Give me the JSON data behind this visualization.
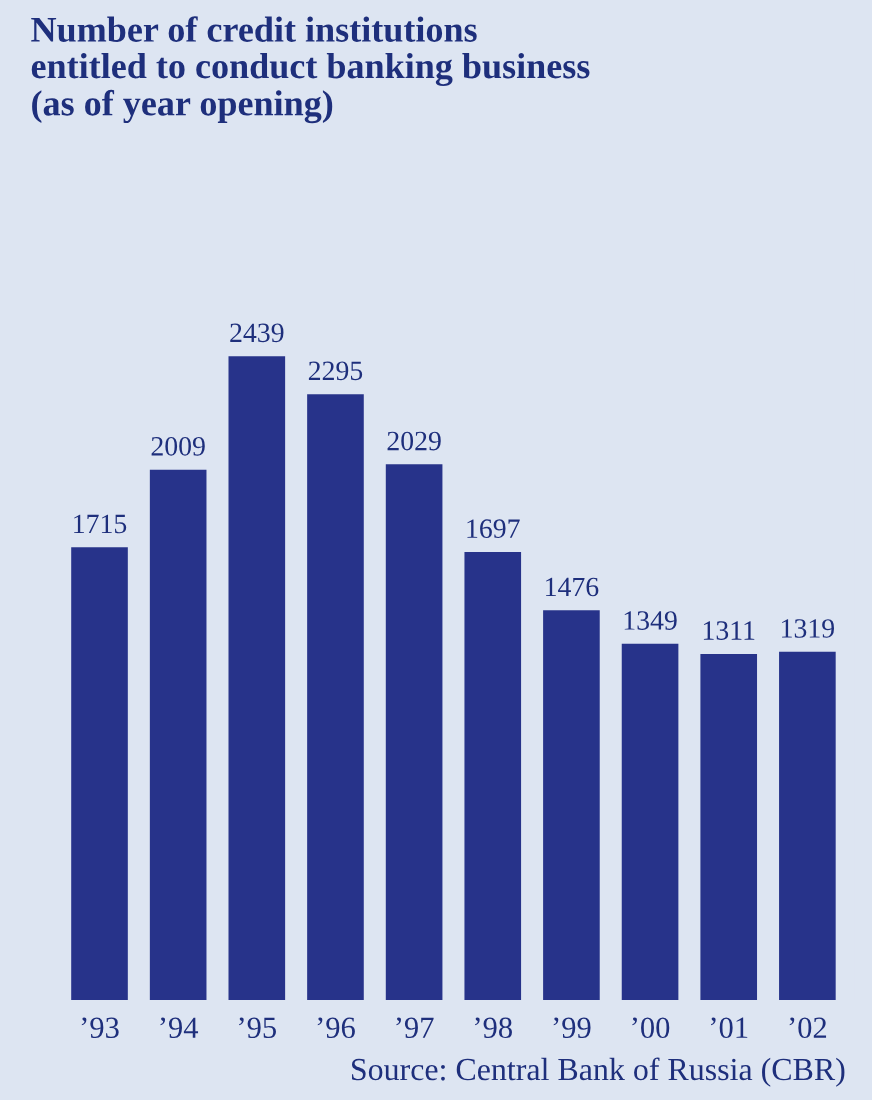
{
  "chart_data": {
    "type": "bar",
    "title": "Number of credit institutions\nentitled to conduct banking business\n(as of year opening)",
    "categories": [
      "’93",
      "’94",
      "’95",
      "’96",
      "’97",
      "’98",
      "’99",
      "’00",
      "’01",
      "’02"
    ],
    "values": [
      1715,
      2009,
      2439,
      2295,
      2029,
      1697,
      1476,
      1349,
      1311,
      1319
    ],
    "color": "#27338a",
    "data_labels": true,
    "annotations": [
      "Source: Central Bank of Russia (CBR)"
    ]
  }
}
